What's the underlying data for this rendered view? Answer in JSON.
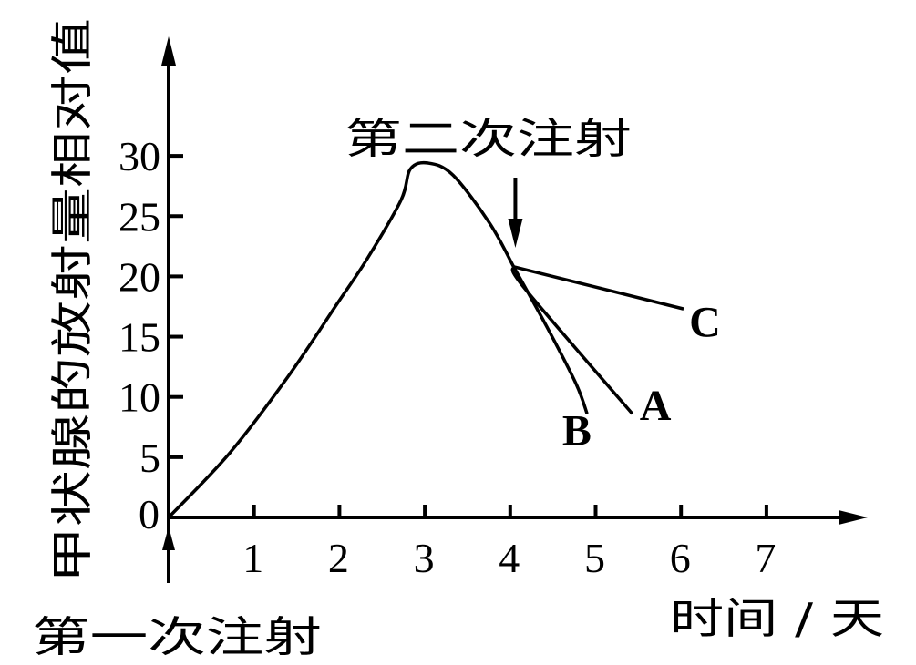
{
  "chart_data": {
    "type": "line",
    "title": "",
    "xlabel": "时间 / 天",
    "ylabel": "甲状腺的放射量相对值",
    "xlim": [
      0,
      8.2
    ],
    "ylim": [
      0,
      40
    ],
    "x_ticks": [
      "1",
      "2",
      "3",
      "4",
      "5",
      "6",
      "7"
    ],
    "y_ticks": [
      "0",
      "5",
      "10",
      "15",
      "20",
      "25",
      "30"
    ],
    "grid": false,
    "series": [
      {
        "name": "",
        "points": [
          [
            0,
            0
          ],
          [
            0.71,
            5.3
          ],
          [
            1.39,
            11.6
          ],
          [
            1.98,
            17.8
          ],
          [
            2.32,
            21.4
          ],
          [
            2.72,
            26.3
          ],
          [
            2.83,
            28.9
          ],
          [
            3.04,
            29.4
          ],
          [
            3.33,
            28.4
          ],
          [
            3.76,
            24.4
          ],
          [
            4.04,
            20.8
          ]
        ]
      },
      {
        "name": "A",
        "points": [
          [
            4.04,
            20.8
          ],
          [
            4.17,
            19.0
          ],
          [
            5.43,
            8.6
          ]
        ]
      },
      {
        "name": "B",
        "points": [
          [
            4.04,
            20.8
          ],
          [
            4.43,
            15.8
          ],
          [
            4.77,
            11.1
          ],
          [
            4.9,
            8.6
          ]
        ]
      },
      {
        "name": "C",
        "points": [
          [
            4.04,
            20.8
          ],
          [
            6.03,
            17.3
          ]
        ]
      }
    ],
    "annotations": [
      {
        "text": "第一次注射",
        "x": 0
      },
      {
        "text": "第二次注射",
        "x": 4.06
      }
    ]
  }
}
